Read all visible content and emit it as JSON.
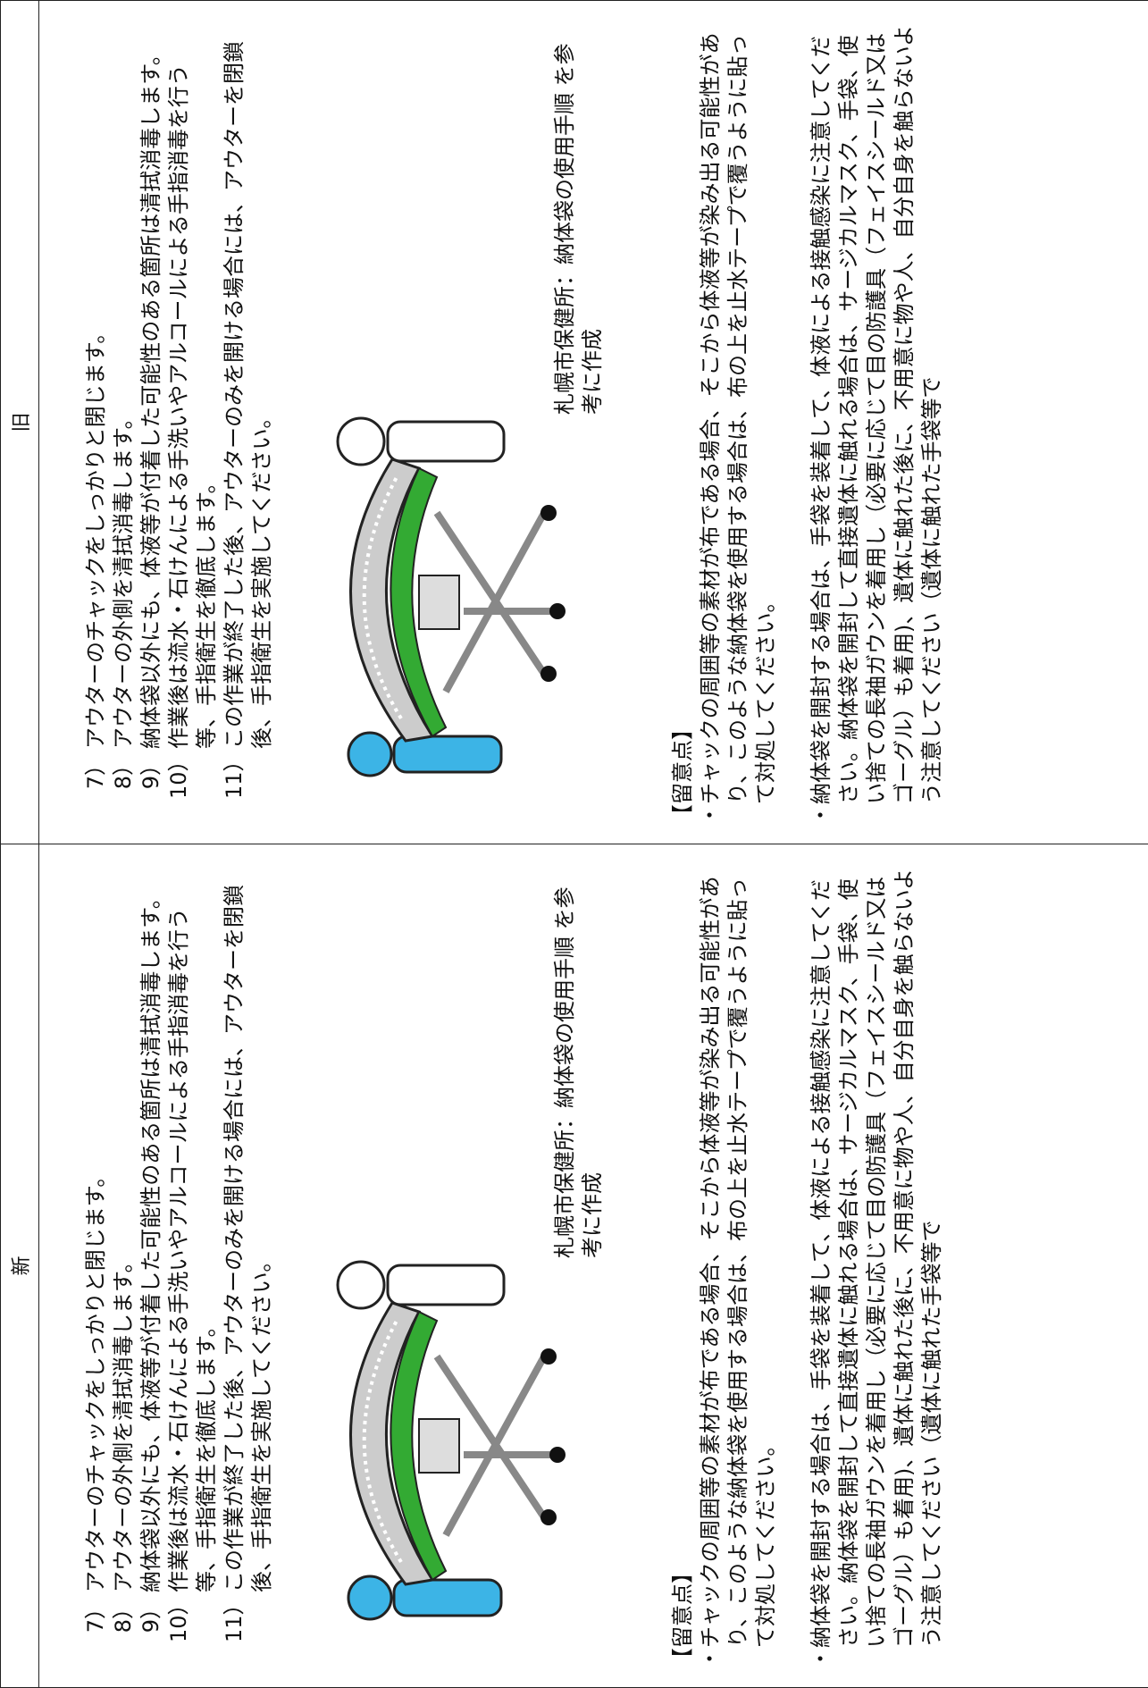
{
  "table": {
    "headers": [
      "新",
      "旧"
    ],
    "columns": [
      {
        "items": [
          {
            "num": "7）",
            "text": "アウターのチャックをしっかりと閉じます。"
          },
          {
            "num": "8）",
            "text": "アウターの外側を清拭消毒します。"
          },
          {
            "num": "9）",
            "text": "納体袋以外にも、体液等が付着した可能性のある箇所は清拭消毒します。"
          },
          {
            "num": "10）",
            "text": "作業後は流水・石けんによる手洗いやアルコールによる手指消毒を行う等、手指衛生を徹底します。"
          },
          {
            "num": "11）",
            "text": "この作業が終了した後、アウターのみを開ける場合には、アウターを閉鎖後、手指衛生を実施してください。"
          }
        ],
        "credit": "札幌市保健所：納体袋の使用手順 を参考に作成",
        "notes_title": "【留意点】",
        "notes": [
          "チャックの周囲等の素材が布である場合、そこから体液等が染み出る可能性があり、このような納体袋を使用する場合は、布の上を止水テープで覆うように貼って対処してください。",
          "納体袋を開封する場合は、手袋を装着して、体液による接触感染に注意してください。納体袋を開封して直接遺体に触れる場合は、サージカルマスク、手袋、使い捨ての長袖ガウンを着用し（必要に応じて目の防護具（フェイスシールド又はゴーグル）も着用)、遺体に触れた後に、不用意に物や人、自分自身を触らないよう注意してください（遺体に触れた手袋等で"
        ]
      },
      {
        "items": [
          {
            "num": "7）",
            "text": "アウターのチャックをしっかりと閉じます。"
          },
          {
            "num": "8）",
            "text": "アウターの外側を清拭消毒します。"
          },
          {
            "num": "9）",
            "text": "納体袋以外にも、体液等が付着した可能性のある箇所は清拭消毒します。"
          },
          {
            "num": "10）",
            "text": "作業後は流水・石けんによる手洗いやアルコールによる手指消毒を行う等、手指衛生を徹底します。"
          },
          {
            "num": "11）",
            "text": "この作業が終了した後、アウターのみを開ける場合には、アウターを閉鎖後、手指衛生を実施してください。"
          }
        ],
        "credit": "札幌市保健所：納体袋の使用手順 を参考に作成",
        "notes_title": "【留意点】",
        "notes": [
          "チャックの周囲等の素材が布である場合、そこから体液等が染み出る可能性があり、このような納体袋を使用する場合は、布の上を止水テープで覆うように貼って対処してください。",
          "納体袋を開封する場合は、手袋を装着して、体液による接触感染に注意してください。納体袋を開封して直接遺体に触れる場合は、サージカルマスク、手袋、使い捨ての長袖ガウンを着用し（必要に応じて目の防護具（フェイスシールド又はゴーグル）も着用)、遺体に触れた後に、不用意に物や人、自分自身を触らないよう注意してください（遺体に触れた手袋等で"
        ]
      }
    ]
  }
}
